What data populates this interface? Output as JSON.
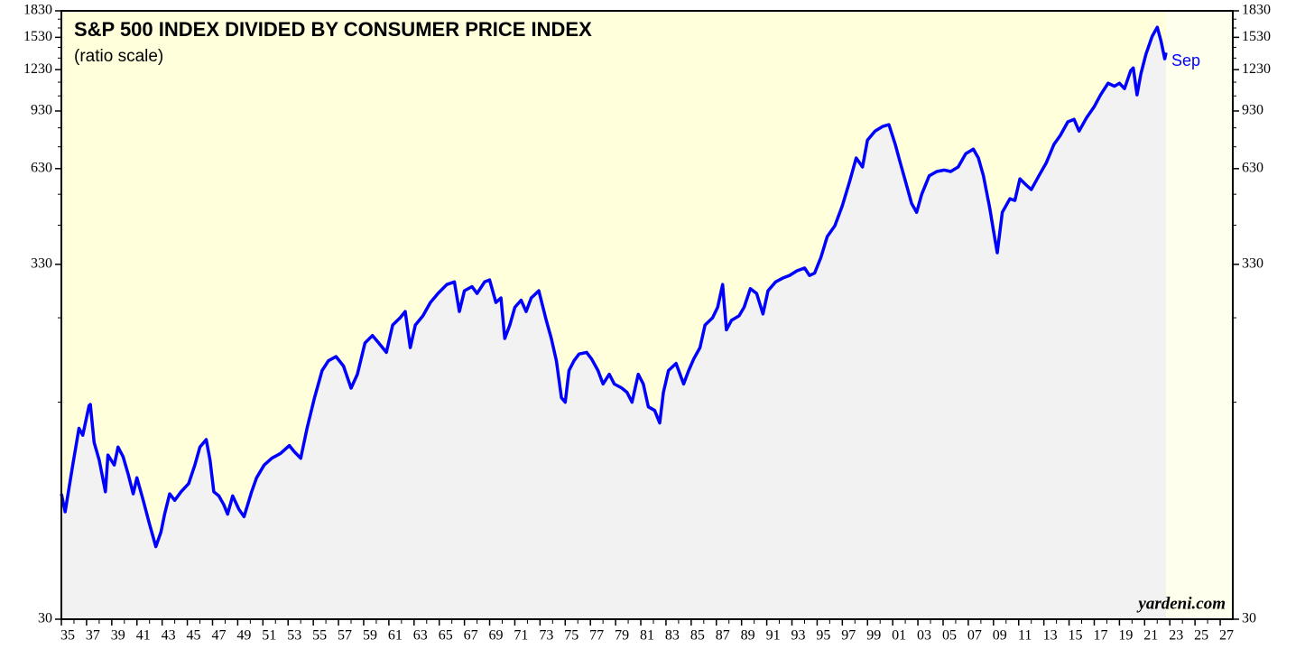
{
  "chart_data": {
    "type": "line",
    "title": "S&P 500 INDEX DIVIDED BY CONSUMER PRICE INDEX",
    "subtitle": "(ratio scale)",
    "annotation": "Sep",
    "source": "yardeni.com",
    "log_scale": true,
    "ylim": [
      30,
      1830
    ],
    "yticks": [
      30,
      330,
      630,
      930,
      1230,
      1530,
      1830
    ],
    "y_minor_ticks": [
      130,
      230,
      430,
      530,
      730,
      830,
      1030,
      1130,
      1330,
      1430,
      1630,
      1730
    ],
    "xlim": [
      1935,
      2028
    ],
    "xticks": [
      {
        "value": 1935,
        "label": "35"
      },
      {
        "value": 1937,
        "label": "37"
      },
      {
        "value": 1939,
        "label": "39"
      },
      {
        "value": 1941,
        "label": "41"
      },
      {
        "value": 1943,
        "label": "43"
      },
      {
        "value": 1945,
        "label": "45"
      },
      {
        "value": 1947,
        "label": "47"
      },
      {
        "value": 1949,
        "label": "49"
      },
      {
        "value": 1951,
        "label": "51"
      },
      {
        "value": 1953,
        "label": "53"
      },
      {
        "value": 1955,
        "label": "55"
      },
      {
        "value": 1957,
        "label": "57"
      },
      {
        "value": 1959,
        "label": "59"
      },
      {
        "value": 1961,
        "label": "61"
      },
      {
        "value": 1963,
        "label": "63"
      },
      {
        "value": 1965,
        "label": "65"
      },
      {
        "value": 1967,
        "label": "67"
      },
      {
        "value": 1969,
        "label": "69"
      },
      {
        "value": 1971,
        "label": "71"
      },
      {
        "value": 1973,
        "label": "73"
      },
      {
        "value": 1975,
        "label": "75"
      },
      {
        "value": 1977,
        "label": "77"
      },
      {
        "value": 1979,
        "label": "79"
      },
      {
        "value": 1981,
        "label": "81"
      },
      {
        "value": 1983,
        "label": "83"
      },
      {
        "value": 1985,
        "label": "85"
      },
      {
        "value": 1987,
        "label": "87"
      },
      {
        "value": 1989,
        "label": "89"
      },
      {
        "value": 1991,
        "label": "91"
      },
      {
        "value": 1993,
        "label": "93"
      },
      {
        "value": 1995,
        "label": "95"
      },
      {
        "value": 1997,
        "label": "97"
      },
      {
        "value": 1999,
        "label": "99"
      },
      {
        "value": 2001,
        "label": "01"
      },
      {
        "value": 2003,
        "label": "03"
      },
      {
        "value": 2005,
        "label": "05"
      },
      {
        "value": 2007,
        "label": "07"
      },
      {
        "value": 2009,
        "label": "09"
      },
      {
        "value": 2011,
        "label": "11"
      },
      {
        "value": 2013,
        "label": "13"
      },
      {
        "value": 2015,
        "label": "15"
      },
      {
        "value": 2017,
        "label": "17"
      },
      {
        "value": 2019,
        "label": "19"
      },
      {
        "value": 2021,
        "label": "21"
      },
      {
        "value": 2023,
        "label": "23"
      },
      {
        "value": 2025,
        "label": "25"
      },
      {
        "value": 2027,
        "label": "27"
      }
    ],
    "x_minor_ticks": [
      1936,
      1938,
      1940,
      1942,
      1944,
      1946,
      1948,
      1950,
      1952,
      1954,
      1956,
      1958,
      1960,
      1962,
      1964,
      1966,
      1968,
      1970,
      1972,
      1974,
      1976,
      1978,
      1980,
      1982,
      1984,
      1986,
      1988,
      1990,
      1992,
      1994,
      1996,
      1998,
      2000,
      2002,
      2004,
      2006,
      2008,
      2010,
      2012,
      2014,
      2016,
      2018,
      2020,
      2022,
      2024,
      2026
    ],
    "background": "#ffffdc",
    "area_color": "#f2f2f2",
    "series": [
      {
        "color": "#0000ff",
        "x": [
          1935.0,
          1935.3,
          1935.9,
          1936.4,
          1936.7,
          1937.2,
          1937.3,
          1937.6,
          1938.0,
          1938.5,
          1938.7,
          1939.2,
          1939.5,
          1939.9,
          1940.3,
          1940.7,
          1941.0,
          1941.5,
          1942.0,
          1942.5,
          1942.9,
          1943.2,
          1943.6,
          1944.0,
          1944.5,
          1945.1,
          1945.6,
          1946.0,
          1946.5,
          1946.8,
          1947.1,
          1947.5,
          1947.9,
          1948.2,
          1948.6,
          1949.1,
          1949.5,
          1950.1,
          1950.5,
          1951.1,
          1951.7,
          1952.4,
          1953.1,
          1953.5,
          1954.0,
          1954.5,
          1955.1,
          1955.7,
          1956.2,
          1956.8,
          1957.4,
          1958.0,
          1958.5,
          1959.1,
          1959.7,
          1960.2,
          1960.8,
          1961.3,
          1961.9,
          1962.3,
          1962.7,
          1963.1,
          1963.7,
          1964.3,
          1964.9,
          1965.6,
          1966.2,
          1966.6,
          1967.0,
          1967.6,
          1968.0,
          1968.6,
          1969.0,
          1969.5,
          1969.9,
          1970.2,
          1970.6,
          1971.0,
          1971.5,
          1971.9,
          1972.3,
          1972.9,
          1973.5,
          1973.9,
          1974.3,
          1974.7,
          1975.0,
          1975.3,
          1975.7,
          1976.1,
          1976.7,
          1977.1,
          1977.6,
          1978.0,
          1978.5,
          1978.9,
          1979.5,
          1979.9,
          1980.3,
          1980.8,
          1981.2,
          1981.6,
          1982.1,
          1982.5,
          1982.8,
          1983.2,
          1983.8,
          1984.4,
          1984.8,
          1985.2,
          1985.7,
          1986.1,
          1986.7,
          1987.1,
          1987.5,
          1987.8,
          1988.2,
          1988.8,
          1989.2,
          1989.7,
          1990.2,
          1990.7,
          1991.1,
          1991.7,
          1992.3,
          1992.8,
          1993.4,
          1994.0,
          1994.4,
          1994.8,
          1995.3,
          1995.8,
          1996.4,
          1997.0,
          1997.6,
          1998.1,
          1998.6,
          1999.0,
          1999.6,
          2000.2,
          2000.7,
          2001.2,
          2001.6,
          2002.0,
          2002.5,
          2002.9,
          2003.3,
          2003.9,
          2004.5,
          2005.1,
          2005.6,
          2006.2,
          2006.8,
          2007.4,
          2007.8,
          2008.2,
          2008.7,
          2009.0,
          2009.3,
          2009.7,
          2010.3,
          2010.7,
          2011.1,
          2011.6,
          2012.0,
          2012.6,
          2013.2,
          2013.8,
          2014.3,
          2014.9,
          2015.4,
          2015.8,
          2016.4,
          2017.0,
          2017.5,
          2018.1,
          2018.6,
          2019.0,
          2019.4,
          2019.9,
          2020.1,
          2020.4,
          2020.7,
          2021.1,
          2021.6,
          2022.0,
          2022.3,
          2022.6,
          2022.7
        ],
        "values": [
          70,
          62,
          85,
          109,
          104,
          127,
          128,
          99,
          88,
          71,
          91,
          85,
          96,
          90,
          80,
          70,
          78,
          67,
          57,
          49,
          54,
          61,
          70,
          67,
          71,
          75,
          85,
          96,
          101,
          88,
          71,
          69,
          65,
          61,
          69,
          63,
          60,
          71,
          78,
          85,
          89,
          92,
          97,
          93,
          89,
          109,
          134,
          161,
          172,
          177,
          166,
          143,
          157,
          194,
          204,
          194,
          182,
          219,
          230,
          240,
          188,
          219,
          233,
          255,
          271,
          288,
          293,
          240,
          276,
          284,
          271,
          293,
          297,
          255,
          263,
          200,
          219,
          247,
          259,
          240,
          263,
          276,
          226,
          200,
          172,
          134,
          130,
          161,
          172,
          180,
          182,
          174,
          161,
          147,
          157,
          147,
          143,
          139,
          130,
          157,
          147,
          126,
          123,
          113,
          139,
          161,
          169,
          147,
          161,
          174,
          188,
          219,
          230,
          247,
          288,
          212,
          226,
          233,
          247,
          280,
          271,
          236,
          276,
          293,
          301,
          306,
          316,
          322,
          306,
          311,
          346,
          398,
          428,
          490,
          581,
          677,
          637,
          764,
          812,
          838,
          848,
          742,
          656,
          581,
          498,
          469,
          530,
          600,
          618,
          624,
          618,
          637,
          697,
          719,
          677,
          600,
          484,
          415,
          357,
          469,
          514,
          508,
          588,
          564,
          547,
          600,
          656,
          742,
          788,
          864,
          879,
          812,
          890,
          958,
          1037,
          1122,
          1100,
          1122,
          1082,
          1222,
          1244,
          1037,
          1193,
          1364,
          1542,
          1638,
          1495,
          1324,
          1380
        ]
      }
    ]
  }
}
